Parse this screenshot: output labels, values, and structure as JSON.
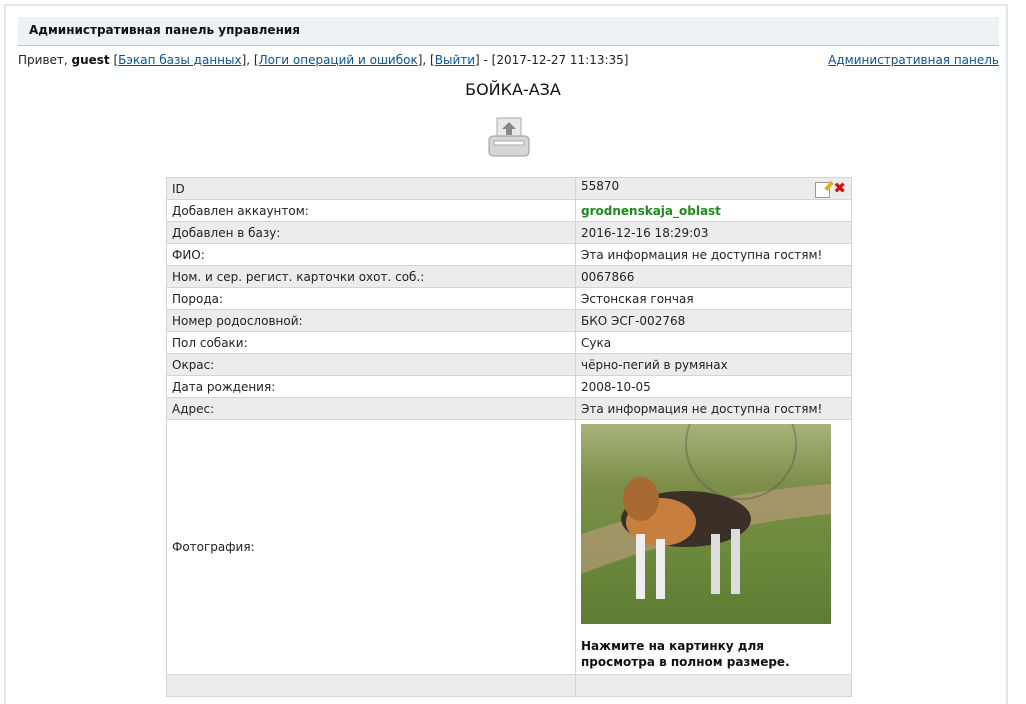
{
  "header": {
    "title": "Административная панель управления"
  },
  "userbar": {
    "greeting": "Привет, ",
    "user": "guest",
    "backup": "Бэкап базы данных",
    "logs": "Логи операций и ошибок",
    "logout": "Выйти",
    "datetime": "[2017-12-27 11:13:35]",
    "admin_link": "Административная панель"
  },
  "page_title": "БОЙКА-АЗА",
  "rows": [
    {
      "label": "ID",
      "value": "55870"
    },
    {
      "label": "Добавлен аккаунтом:",
      "value": "grodnenskaja_oblast"
    },
    {
      "label": "Добавлен в базу:",
      "value": "2016-12-16 18:29:03"
    },
    {
      "label": "ФИО:",
      "value": "Эта информация не доступна гостям!"
    },
    {
      "label": "Ном. и сер. регист. карточки охот. соб.:",
      "value": "0067866"
    },
    {
      "label": "Порода:",
      "value": "Эстонская гончая"
    },
    {
      "label": "Номер родословной:",
      "value": "БКО ЭСГ-002768"
    },
    {
      "label": "Пол собаки:",
      "value": "Сука"
    },
    {
      "label": "Окрас:",
      "value": "чёрно-пегий в румянах"
    },
    {
      "label": "Дата рождения:",
      "value": "2008-10-05"
    },
    {
      "label": "Адрес:",
      "value": "Эта информация не доступна гостям!"
    }
  ],
  "photo": {
    "label": "Фотография:",
    "caption": "Нажмите на картинку для просмотра в полном размере."
  }
}
